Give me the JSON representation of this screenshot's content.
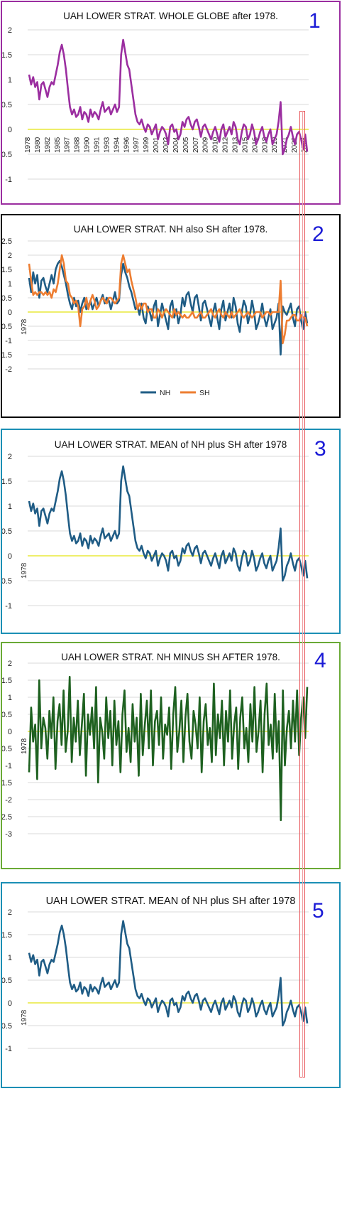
{
  "chart_data": [
    {
      "id": 1,
      "type": "line",
      "number_label": "1",
      "title": "UAH LOWER STRAT. WHOLE GLOBE after 1978.",
      "ylim": [
        -1,
        2
      ],
      "yticks": [
        "2",
        "1.5",
        "1",
        "0.5",
        "0",
        "-0.5",
        "-1"
      ],
      "xtick_labels": [
        "1978",
        "1980",
        "1982",
        "1985",
        "1987",
        "1988",
        "1990",
        "1991",
        "1993",
        "1994",
        "1996",
        "1997",
        "1999",
        "2001",
        "2002",
        "2004",
        "2005",
        "2007",
        "2009",
        "2010",
        "2012",
        "2013",
        "2015",
        "2016",
        "2018",
        "2019",
        "2021",
        "2022",
        "2024"
      ],
      "series": [
        {
          "color": "#9b2ea0",
          "values": [
            1.1,
            0.9,
            1.05,
            0.85,
            0.95,
            0.6,
            0.9,
            0.95,
            0.8,
            0.65,
            0.85,
            0.95,
            0.9,
            1.1,
            1.3,
            1.55,
            1.7,
            1.5,
            1.2,
            0.8,
            0.45,
            0.3,
            0.4,
            0.25,
            0.3,
            0.45,
            0.2,
            0.35,
            0.3,
            0.15,
            0.4,
            0.25,
            0.35,
            0.3,
            0.2,
            0.4,
            0.55,
            0.35,
            0.4,
            0.45,
            0.3,
            0.4,
            0.5,
            0.35,
            0.45,
            1.5,
            1.8,
            1.55,
            1.3,
            1.2,
            0.9,
            0.6,
            0.3,
            0.15,
            0.1,
            0.2,
            0.05,
            -0.05,
            0.1,
            0.05,
            -0.1,
            0.0,
            0.1,
            -0.2,
            -0.05,
            0.05,
            0.0,
            -0.1,
            -0.3,
            0.05,
            0.1,
            -0.05,
            0.0,
            -0.2,
            -0.1,
            0.15,
            0.05,
            0.2,
            0.25,
            0.1,
            0.0,
            0.15,
            0.2,
            0.05,
            -0.15,
            0.05,
            0.1,
            0.0,
            -0.1,
            -0.2,
            -0.05,
            0.05,
            -0.1,
            -0.25,
            0.0,
            0.1,
            -0.15,
            -0.05,
            0.05,
            -0.1,
            0.15,
            0.05,
            -0.2,
            -0.3,
            -0.05,
            0.1,
            0.05,
            -0.2,
            -0.1,
            0.1,
            -0.05,
            -0.3,
            -0.2,
            -0.05,
            0.05,
            -0.15,
            -0.25,
            -0.1,
            0.0,
            -0.3,
            -0.2,
            -0.1,
            0.15,
            0.55,
            -0.5,
            -0.4,
            -0.2,
            -0.1,
            0.05,
            -0.15,
            -0.3,
            -0.1,
            -0.05,
            -0.2,
            -0.4,
            -0.1,
            -0.45
          ]
        }
      ]
    },
    {
      "id": 2,
      "type": "line",
      "number_label": "2",
      "title": "UAH LOWER STRAT. NH also SH after 1978.",
      "ylim": [
        -2,
        2.5
      ],
      "yticks": [
        "2.5",
        "2",
        "1.5",
        "1",
        "0.5",
        "0",
        "-0.5",
        "-1",
        "-1.5",
        "-2"
      ],
      "x_axis_label": "1978",
      "legend_position": "bottom",
      "series": [
        {
          "name": "NH",
          "color": "#1f5c85",
          "values": [
            1.2,
            0.7,
            1.4,
            1.0,
            1.3,
            0.5,
            1.1,
            1.2,
            0.9,
            0.7,
            1.0,
            1.3,
            1.0,
            1.5,
            1.7,
            1.8,
            1.6,
            1.3,
            1.0,
            0.6,
            0.3,
            0.1,
            0.5,
            0.2,
            0.4,
            0.0,
            0.3,
            0.5,
            0.1,
            0.2,
            0.4,
            0.1,
            0.3,
            0.5,
            0.2,
            0.4,
            0.6,
            0.3,
            0.5,
            0.4,
            0.1,
            0.4,
            0.7,
            0.3,
            0.4,
            1.3,
            1.7,
            1.4,
            1.2,
            0.9,
            0.7,
            0.4,
            0.1,
            0.2,
            -0.1,
            0.3,
            -0.2,
            -0.4,
            0.2,
            0.0,
            -0.3,
            0.2,
            0.4,
            -0.5,
            -0.1,
            0.3,
            0.0,
            -0.3,
            -0.6,
            0.2,
            0.4,
            -0.2,
            0.1,
            -0.4,
            -0.1,
            0.5,
            0.2,
            0.6,
            0.7,
            0.3,
            0.0,
            0.5,
            0.6,
            0.2,
            -0.3,
            0.3,
            0.4,
            0.1,
            -0.2,
            -0.5,
            0.0,
            0.3,
            -0.2,
            -0.6,
            0.1,
            0.4,
            -0.3,
            0.0,
            0.3,
            -0.2,
            0.5,
            0.2,
            -0.4,
            -0.7,
            0.0,
            0.4,
            0.2,
            -0.4,
            -0.1,
            0.4,
            0.0,
            -0.6,
            -0.4,
            -0.1,
            0.3,
            -0.2,
            -0.5,
            -0.2,
            0.1,
            -0.6,
            -0.4,
            -0.2,
            0.3,
            -1.5,
            0.2,
            0.0,
            -0.1,
            0.1,
            0.3,
            -0.2,
            -0.5,
            0.1,
            0.2,
            -0.3,
            -0.6,
            0.0,
            -0.4
          ]
        },
        {
          "name": "SH",
          "color": "#ed7d31",
          "values": [
            1.7,
            1.1,
            0.6,
            0.7,
            0.6,
            0.7,
            0.7,
            0.6,
            0.7,
            0.6,
            0.7,
            0.5,
            0.8,
            0.7,
            1.0,
            1.5,
            2.0,
            1.7,
            1.1,
            1.0,
            0.6,
            0.5,
            0.3,
            0.4,
            0.2,
            -0.5,
            0.1,
            0.2,
            0.5,
            0.1,
            0.4,
            0.6,
            0.4,
            0.1,
            0.2,
            0.4,
            0.5,
            0.4,
            0.3,
            0.5,
            0.5,
            0.4,
            0.3,
            0.4,
            0.5,
            1.7,
            2.0,
            1.7,
            1.4,
            1.5,
            1.1,
            0.8,
            0.5,
            0.1,
            0.3,
            0.1,
            0.3,
            0.3,
            0.0,
            0.1,
            0.1,
            -0.2,
            -0.2,
            0.1,
            0.0,
            -0.2,
            0.0,
            0.1,
            0.0,
            -0.1,
            -0.2,
            0.1,
            -0.1,
            0.0,
            -0.1,
            -0.2,
            -0.1,
            -0.2,
            -0.2,
            -0.1,
            0.0,
            -0.2,
            -0.2,
            -0.1,
            0.0,
            -0.2,
            -0.2,
            -0.1,
            0.0,
            0.1,
            -0.1,
            -0.2,
            0.0,
            0.1,
            -0.1,
            -0.2,
            0.0,
            -0.1,
            -0.2,
            0.0,
            -0.2,
            -0.1,
            0.0,
            0.1,
            -0.1,
            -0.2,
            -0.1,
            0.0,
            -0.1,
            -0.2,
            -0.1,
            0.0,
            0.0,
            0.0,
            -0.2,
            -0.1,
            0.0,
            0.0,
            -0.1,
            0.0,
            0.0,
            0.0,
            0.0,
            1.1,
            -1.1,
            -0.8,
            -0.3,
            -0.3,
            -0.2,
            -0.1,
            -0.1,
            -0.3,
            -0.3,
            -0.1,
            -0.2,
            -0.2,
            -0.5
          ]
        }
      ]
    },
    {
      "id": 3,
      "type": "line",
      "number_label": "3",
      "title": "UAH LOWER STRAT. MEAN of NH plus SH after 1978",
      "ylim": [
        -1,
        2
      ],
      "yticks": [
        "2",
        "1.5",
        "1",
        "0.5",
        "0",
        "-0.5",
        "-1"
      ],
      "x_axis_label": "1978",
      "series": [
        {
          "color": "#1f5c85",
          "values": [
            1.1,
            0.9,
            1.05,
            0.85,
            0.95,
            0.6,
            0.9,
            0.95,
            0.8,
            0.65,
            0.85,
            0.95,
            0.9,
            1.1,
            1.3,
            1.55,
            1.7,
            1.5,
            1.2,
            0.8,
            0.45,
            0.3,
            0.4,
            0.25,
            0.3,
            0.45,
            0.2,
            0.35,
            0.3,
            0.15,
            0.4,
            0.25,
            0.35,
            0.3,
            0.2,
            0.4,
            0.55,
            0.35,
            0.4,
            0.45,
            0.3,
            0.4,
            0.5,
            0.35,
            0.45,
            1.5,
            1.8,
            1.55,
            1.3,
            1.2,
            0.9,
            0.6,
            0.3,
            0.15,
            0.1,
            0.2,
            0.05,
            -0.05,
            0.1,
            0.05,
            -0.1,
            0.0,
            0.1,
            -0.2,
            -0.05,
            0.05,
            0.0,
            -0.1,
            -0.3,
            0.05,
            0.1,
            -0.05,
            0.0,
            -0.2,
            -0.1,
            0.15,
            0.05,
            0.2,
            0.25,
            0.1,
            0.0,
            0.15,
            0.2,
            0.05,
            -0.15,
            0.05,
            0.1,
            0.0,
            -0.1,
            -0.2,
            -0.05,
            0.05,
            -0.1,
            -0.25,
            0.0,
            0.1,
            -0.15,
            -0.05,
            0.05,
            -0.1,
            0.15,
            0.05,
            -0.2,
            -0.3,
            -0.05,
            0.1,
            0.05,
            -0.2,
            -0.1,
            0.1,
            -0.05,
            -0.3,
            -0.2,
            -0.05,
            0.05,
            -0.15,
            -0.25,
            -0.1,
            0.0,
            -0.3,
            -0.2,
            -0.1,
            0.15,
            0.55,
            -0.5,
            -0.4,
            -0.2,
            -0.1,
            0.05,
            -0.15,
            -0.3,
            -0.1,
            -0.05,
            -0.2,
            -0.4,
            -0.1,
            -0.45
          ]
        }
      ]
    },
    {
      "id": 4,
      "type": "line",
      "number_label": "4",
      "title": "UAH LOWER STRAT. NH MINUS SH AFTER 1978.",
      "ylim": [
        -3,
        2
      ],
      "yticks": [
        "2",
        "1.5",
        "1",
        "0.5",
        "0",
        "-0.5",
        "-1",
        "-1.5",
        "-2",
        "-2.5",
        "-3"
      ],
      "x_axis_label": "1978",
      "series": [
        {
          "color": "#1e6120",
          "values": [
            -1.2,
            0.7,
            -0.3,
            0.2,
            -1.4,
            1.5,
            -0.5,
            0.4,
            0.1,
            -0.8,
            0.6,
            -0.2,
            1.0,
            -1.1,
            0.3,
            0.8,
            -0.4,
            1.2,
            -0.6,
            0.0,
            1.6,
            -0.9,
            0.4,
            -0.3,
            0.9,
            -0.7,
            0.2,
            1.1,
            -1.3,
            0.5,
            -0.1,
            0.7,
            -0.5,
            1.3,
            -1.5,
            0.4,
            0.0,
            -0.8,
            1.0,
            -0.2,
            0.6,
            -1.0,
            0.9,
            -0.4,
            0.3,
            -1.2,
            0.5,
            1.2,
            -0.6,
            0.1,
            -0.9,
            0.8,
            -0.3,
            0.4,
            -1.3,
            1.1,
            -0.7,
            0.2,
            0.9,
            -0.5,
            1.2,
            -1.0,
            0.3,
            0.6,
            -0.4,
            1.0,
            -0.8,
            0.2,
            -0.1,
            0.7,
            -1.1,
            0.5,
            1.3,
            -0.6,
            0.0,
            0.9,
            -0.9,
            0.4,
            1.1,
            -0.3,
            -0.8,
            0.6,
            0.2,
            -0.5,
            1.0,
            -1.2,
            0.3,
            0.8,
            -0.4,
            0.1,
            -0.9,
            1.4,
            -0.7,
            0.5,
            -0.2,
            0.9,
            -1.0,
            0.6,
            -0.3,
            1.2,
            -0.8,
            0.2,
            0.7,
            -1.1,
            0.4,
            1.0,
            -0.5,
            0.1,
            -0.9,
            0.8,
            -0.3,
            1.3,
            -0.6,
            0.0,
            0.9,
            -1.2,
            0.5,
            1.4,
            -0.4,
            0.2,
            -0.8,
            1.1,
            -0.6,
            0.3,
            -2.6,
            1.2,
            -1.0,
            0.1,
            0.6,
            -0.5,
            0.9,
            -0.3,
            1.2,
            -0.7,
            0.4,
            1.0,
            -0.2,
            1.3
          ]
        }
      ]
    },
    {
      "id": 5,
      "type": "line",
      "number_label": "5",
      "title": "UAH LOWER STRAT. MEAN of NH plus SH after 1978",
      "ylim": [
        -1,
        2
      ],
      "yticks": [
        "2",
        "1.5",
        "1",
        "0.5",
        "0",
        "-0.5",
        "-1"
      ],
      "x_axis_label": "1978",
      "series": [
        {
          "color": "#1f5c85",
          "values": [
            1.1,
            0.9,
            1.05,
            0.85,
            0.95,
            0.6,
            0.9,
            0.95,
            0.8,
            0.65,
            0.85,
            0.95,
            0.9,
            1.1,
            1.3,
            1.55,
            1.7,
            1.5,
            1.2,
            0.8,
            0.45,
            0.3,
            0.4,
            0.25,
            0.3,
            0.45,
            0.2,
            0.35,
            0.3,
            0.15,
            0.4,
            0.25,
            0.35,
            0.3,
            0.2,
            0.4,
            0.55,
            0.35,
            0.4,
            0.45,
            0.3,
            0.4,
            0.5,
            0.35,
            0.45,
            1.5,
            1.8,
            1.55,
            1.3,
            1.2,
            0.9,
            0.6,
            0.3,
            0.15,
            0.1,
            0.2,
            0.05,
            -0.05,
            0.1,
            0.05,
            -0.1,
            0.0,
            0.1,
            -0.2,
            -0.05,
            0.05,
            0.0,
            -0.1,
            -0.3,
            0.05,
            0.1,
            -0.05,
            0.0,
            -0.2,
            -0.1,
            0.15,
            0.05,
            0.2,
            0.25,
            0.1,
            0.0,
            0.15,
            0.2,
            0.05,
            -0.15,
            0.05,
            0.1,
            0.0,
            -0.1,
            -0.2,
            -0.05,
            0.05,
            -0.1,
            -0.25,
            0.0,
            0.1,
            -0.15,
            -0.05,
            0.05,
            -0.1,
            0.15,
            0.05,
            -0.2,
            -0.3,
            -0.05,
            0.1,
            0.05,
            -0.2,
            -0.1,
            0.1,
            -0.05,
            -0.3,
            -0.2,
            -0.05,
            0.05,
            -0.15,
            -0.25,
            -0.1,
            0.0,
            -0.3,
            -0.2,
            -0.1,
            0.15,
            0.55,
            -0.5,
            -0.4,
            -0.2,
            -0.1,
            0.05,
            -0.15,
            -0.3,
            -0.1,
            -0.05,
            -0.2,
            -0.4,
            -0.1,
            -0.45
          ]
        }
      ]
    }
  ],
  "style": {
    "zero_line_color": "#e8e83a",
    "grid_color": "#d9d9d9",
    "highlight_color": "#e8585c",
    "panel_borders": [
      "#9b2ea0",
      "#000000",
      "#1b8fb5",
      "#6aaa36",
      "#1b8fb5"
    ]
  }
}
